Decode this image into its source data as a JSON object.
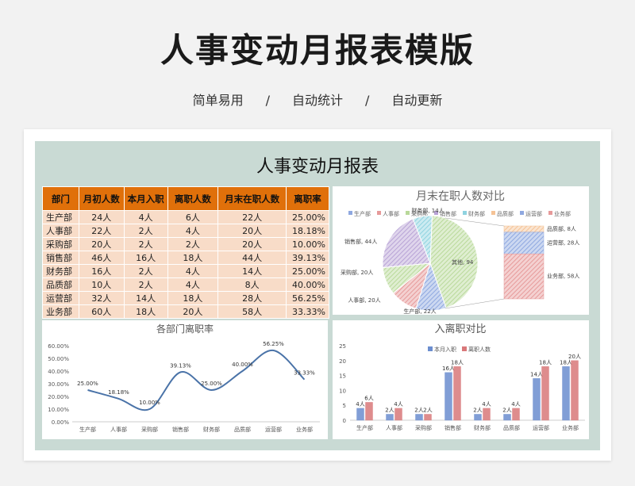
{
  "header": {
    "title": "人事变动月报表模版",
    "features": [
      "简单易用",
      "/",
      "自动统计",
      "/",
      "自动更新"
    ]
  },
  "sheet": {
    "title": "人事变动月报表",
    "table": {
      "headers": [
        "部门",
        "月初人数",
        "本月入职",
        "离职人数",
        "月末在职人数",
        "离职率"
      ],
      "rows": [
        [
          "生产部",
          "24人",
          "4人",
          "6人",
          "22人",
          "25.00%"
        ],
        [
          "人事部",
          "22人",
          "2人",
          "4人",
          "20人",
          "18.18%"
        ],
        [
          "采购部",
          "20人",
          "2人",
          "2人",
          "20人",
          "10.00%"
        ],
        [
          "销售部",
          "46人",
          "16人",
          "18人",
          "44人",
          "39.13%"
        ],
        [
          "财务部",
          "16人",
          "2人",
          "4人",
          "14人",
          "25.00%"
        ],
        [
          "品质部",
          "10人",
          "2人",
          "4人",
          "8人",
          "40.00%"
        ],
        [
          "运营部",
          "32人",
          "14人",
          "18人",
          "28人",
          "56.25%"
        ],
        [
          "业务部",
          "60人",
          "18人",
          "20人",
          "58人",
          "33.33%"
        ]
      ]
    }
  },
  "chart_data": [
    {
      "type": "pie",
      "title": "月末在职人数对比",
      "legend": [
        "生产部",
        "人事部",
        "采购部",
        "销售部",
        "财务部",
        "品质部",
        "运营部",
        "业务部"
      ],
      "slices": [
        {
          "label": "生产部, 22人",
          "value": 22,
          "color": "#8fa8e0"
        },
        {
          "label": "人事部, 20人",
          "value": 20,
          "color": "#e69a9a"
        },
        {
          "label": "采购部, 20人",
          "value": 20,
          "color": "#b9d99a"
        },
        {
          "label": "销售部, 44人",
          "value": 44,
          "color": "#b8a3d6"
        },
        {
          "label": "财务部, 14人",
          "value": 14,
          "color": "#8fd3e0"
        },
        {
          "label": "其他, 94",
          "value": 94,
          "color": "#b9d99a"
        }
      ],
      "other_breakdown": [
        {
          "label": "品质部, 8人",
          "value": 8,
          "color": "#f5c396"
        },
        {
          "label": "运营部, 28人",
          "value": 28,
          "color": "#8fa8e0"
        },
        {
          "label": "业务部, 58人",
          "value": 58,
          "color": "#e69a9a"
        }
      ]
    },
    {
      "type": "line",
      "title": "各部门离职率",
      "categories": [
        "生产部",
        "人事部",
        "采购部",
        "销售部",
        "财务部",
        "品质部",
        "运营部",
        "业务部"
      ],
      "values": [
        25.0,
        18.18,
        10.0,
        39.13,
        25.0,
        40.0,
        56.25,
        33.33
      ],
      "value_labels": [
        "25.00%",
        "18.18%",
        "10.00%",
        "39.13%",
        "25.00%",
        "40.00%",
        "56.25%",
        "33.33%"
      ],
      "yticks": [
        "0.00%",
        "10.00%",
        "20.00%",
        "30.00%",
        "40.00%",
        "50.00%",
        "60.00%"
      ],
      "ylim": [
        0,
        60
      ],
      "color": "#4a73a8"
    },
    {
      "type": "bar",
      "title": "入离职对比",
      "categories": [
        "生产部",
        "人事部",
        "采购部",
        "销售部",
        "财务部",
        "品质部",
        "运营部",
        "业务部"
      ],
      "series": [
        {
          "name": "本月入职",
          "values": [
            4,
            2,
            2,
            16,
            2,
            2,
            14,
            18
          ],
          "labels": [
            "4人",
            "2人",
            "2人",
            "16人",
            "2人",
            "2人",
            "14人",
            "18人"
          ],
          "color": "#6c8ecf"
        },
        {
          "name": "离职人数",
          "values": [
            6,
            4,
            2,
            18,
            4,
            4,
            18,
            20
          ],
          "labels": [
            "6人",
            "4人",
            "2人",
            "18人",
            "4人",
            "4人",
            "18人",
            "20人"
          ],
          "color": "#d9787a"
        }
      ],
      "yticks": [
        "0",
        "5",
        "10",
        "15",
        "20",
        "25"
      ],
      "ylim": [
        0,
        25
      ]
    }
  ]
}
